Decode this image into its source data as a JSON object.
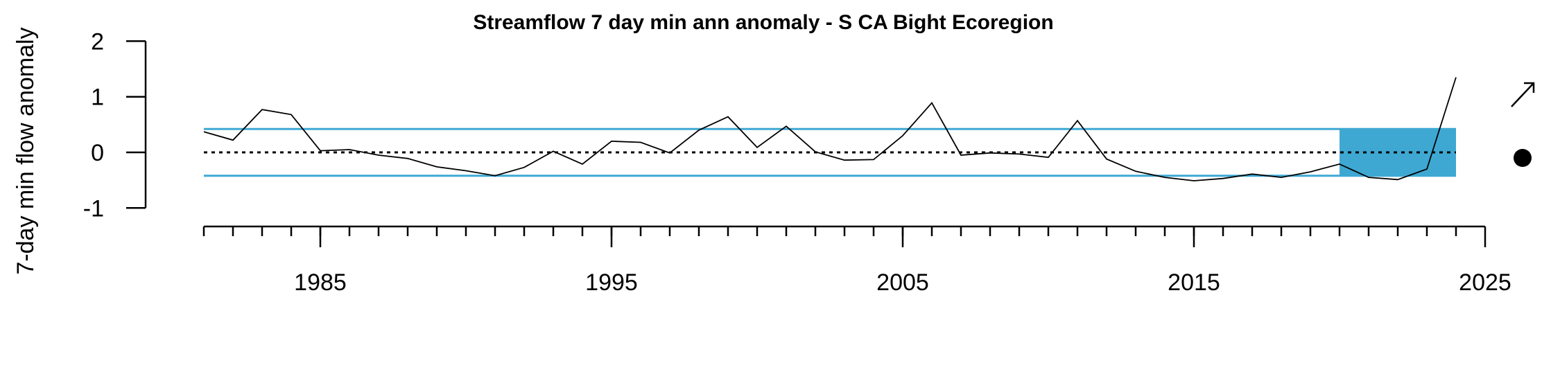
{
  "colors": {
    "band": "#3ea8d3",
    "series": "#000000",
    "mean_line": "#000000"
  },
  "chart_data": {
    "type": "line",
    "title": "Streamflow 7 day min ann anomaly - S CA Bight Ecoregion",
    "xlabel": "",
    "ylabel": "7-day min flow anomaly",
    "xlim": [
      1981,
      2025
    ],
    "ylim": [
      -1,
      2
    ],
    "x_major_ticks": [
      "1985",
      "1995",
      "2005",
      "2015",
      "2025"
    ],
    "x_minor_tick_start": 1981,
    "x_minor_tick_end": 2024,
    "y_ticks": [
      "2",
      "1",
      "0",
      "-1"
    ],
    "reference_lines": {
      "mean": 0,
      "upper_sd": 0.42,
      "lower_sd": -0.42
    },
    "recent_period": {
      "start": 2020,
      "end": 2024
    },
    "x": [
      1981,
      1982,
      1983,
      1984,
      1985,
      1986,
      1987,
      1988,
      1989,
      1990,
      1991,
      1992,
      1993,
      1994,
      1995,
      1996,
      1997,
      1998,
      1999,
      2000,
      2001,
      2002,
      2003,
      2004,
      2005,
      2006,
      2007,
      2008,
      2009,
      2010,
      2011,
      2012,
      2013,
      2014,
      2015,
      2016,
      2017,
      2018,
      2019,
      2020,
      2021,
      2022,
      2023,
      2024
    ],
    "y": [
      0.37,
      0.22,
      0.77,
      0.68,
      0.03,
      0.05,
      -0.05,
      -0.11,
      -0.26,
      -0.33,
      -0.42,
      -0.27,
      0.02,
      -0.21,
      0.2,
      0.18,
      -0.01,
      0.4,
      0.64,
      0.09,
      0.47,
      0.01,
      -0.14,
      -0.13,
      0.3,
      0.89,
      -0.05,
      -0.01,
      -0.03,
      -0.09,
      0.57,
      -0.12,
      -0.34,
      -0.45,
      -0.51,
      -0.47,
      -0.39,
      -0.45,
      -0.35,
      -0.21,
      -0.45,
      -0.49,
      -0.3,
      1.35
    ],
    "trend_indicator": "increasing",
    "mean_indicator": "within 1 SD"
  }
}
